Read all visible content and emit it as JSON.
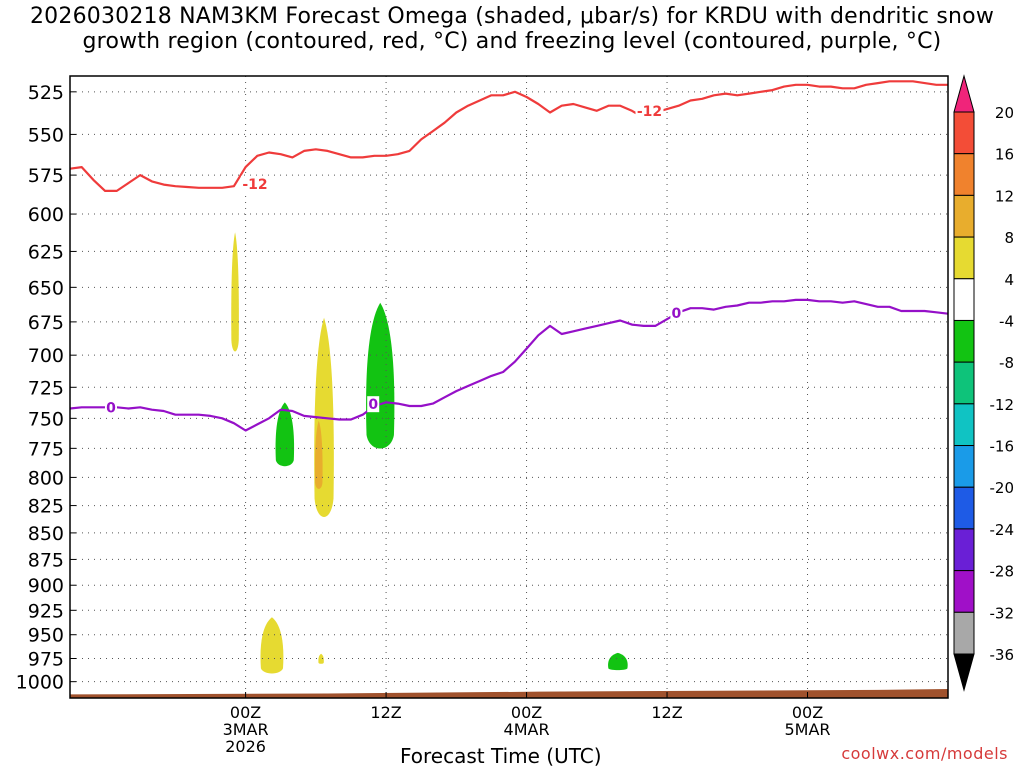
{
  "title_line1": "2026030218 NAM3KM Forecast Omega (shaded, μbar/s) for KRDU with dendritic snow",
  "title_line2": "growth region (contoured, red, °C) and freezing level (contoured, purple, °C)",
  "credit": "coolwx.com/models",
  "chart_data": {
    "type": "time-height",
    "xlabel": "Forecast Time (UTC)",
    "ylabel": "",
    "y_axis": {
      "unit": "hPa",
      "inverted": true,
      "ylim": [
        1018,
        516
      ],
      "ticks": [
        525,
        550,
        575,
        600,
        625,
        650,
        675,
        700,
        725,
        750,
        775,
        800,
        825,
        850,
        875,
        900,
        925,
        950,
        975,
        1000
      ]
    },
    "x_axis": {
      "start_hour": -15,
      "end_hour": 60,
      "ticks": [
        {
          "hour": 0,
          "lines": [
            "00Z",
            "3MAR",
            "2026"
          ]
        },
        {
          "hour": 12,
          "lines": [
            "12Z"
          ]
        },
        {
          "hour": 24,
          "lines": [
            "00Z",
            "4MAR"
          ]
        },
        {
          "hour": 36,
          "lines": [
            "12Z"
          ]
        },
        {
          "hour": 48,
          "lines": [
            "00Z",
            "5MAR"
          ]
        }
      ]
    },
    "grid": true,
    "colorbar": {
      "labels": [
        20,
        16,
        12,
        8,
        4,
        -4,
        -8,
        -12,
        -16,
        -20,
        -24,
        -28,
        -32,
        -36
      ],
      "colors": [
        "#f0247a",
        "#f34d37",
        "#f0822d",
        "#e8ad2d",
        "#e6da31",
        "#ffffff",
        "#12c312",
        "#0ec37a",
        "#10c3c3",
        "#1a9be8",
        "#1e5be6",
        "#6a1fd6",
        "#a010c8",
        "#a8a8a8",
        "#000000"
      ]
    },
    "series": [
      {
        "name": "-12",
        "color": "#ef3b3b",
        "label_positions": [
          [
            0.8,
            580.5
          ],
          [
            34.5,
            536.2
          ]
        ],
        "points": [
          [
            -15,
            571
          ],
          [
            -14,
            570
          ],
          [
            -13,
            578
          ],
          [
            -12,
            585
          ],
          [
            -11,
            585
          ],
          [
            -10,
            580
          ],
          [
            -9,
            575
          ],
          [
            -8,
            579
          ],
          [
            -7,
            581
          ],
          [
            -6,
            582
          ],
          [
            -5,
            582.5
          ],
          [
            -4,
            583
          ],
          [
            -3,
            583
          ],
          [
            -2,
            583
          ],
          [
            -1,
            582
          ],
          [
            0,
            570
          ],
          [
            1,
            563
          ],
          [
            2,
            561
          ],
          [
            3,
            562
          ],
          [
            4,
            564
          ],
          [
            5,
            560
          ],
          [
            6,
            559
          ],
          [
            7,
            560
          ],
          [
            8,
            562
          ],
          [
            9,
            564
          ],
          [
            10,
            564
          ],
          [
            11,
            563
          ],
          [
            12,
            563
          ],
          [
            13,
            562
          ],
          [
            14,
            560
          ],
          [
            15,
            553
          ],
          [
            16,
            548
          ],
          [
            17,
            543
          ],
          [
            18,
            537
          ],
          [
            19,
            533
          ],
          [
            20,
            530
          ],
          [
            21,
            527
          ],
          [
            22,
            527
          ],
          [
            23,
            525
          ],
          [
            24,
            528
          ],
          [
            25,
            532
          ],
          [
            26,
            537
          ],
          [
            27,
            533
          ],
          [
            28,
            532
          ],
          [
            29,
            534
          ],
          [
            30,
            536
          ],
          [
            31,
            533
          ],
          [
            32,
            533
          ],
          [
            33,
            536
          ],
          [
            34,
            540
          ],
          [
            35,
            537
          ],
          [
            36,
            535
          ],
          [
            37,
            533
          ],
          [
            38,
            530
          ],
          [
            39,
            529
          ],
          [
            40,
            527
          ],
          [
            41,
            526
          ],
          [
            42,
            527
          ],
          [
            43,
            526
          ],
          [
            44,
            525
          ],
          [
            45,
            524
          ],
          [
            46,
            522
          ],
          [
            47,
            521
          ],
          [
            48,
            521
          ],
          [
            49,
            522
          ],
          [
            50,
            522
          ],
          [
            51,
            523
          ],
          [
            52,
            523
          ],
          [
            53,
            521
          ],
          [
            54,
            520
          ],
          [
            55,
            519
          ],
          [
            56,
            519
          ],
          [
            57,
            519
          ],
          [
            58,
            520
          ],
          [
            59,
            521
          ],
          [
            60,
            521
          ]
        ]
      },
      {
        "name": "0",
        "color": "#9510c8",
        "label_positions": [
          [
            -11.5,
            741
          ],
          [
            36.8,
            668.5
          ],
          [
            10.9,
            738.5
          ]
        ],
        "points": [
          [
            -15,
            742
          ],
          [
            -14,
            741
          ],
          [
            -13,
            741
          ],
          [
            -12,
            741
          ],
          [
            -11,
            741
          ],
          [
            -10,
            742
          ],
          [
            -9,
            741
          ],
          [
            -8,
            743
          ],
          [
            -7,
            744
          ],
          [
            -6,
            747
          ],
          [
            -5,
            747
          ],
          [
            -4,
            747
          ],
          [
            -3,
            748
          ],
          [
            -2,
            750
          ],
          [
            -1,
            754
          ],
          [
            0,
            760
          ],
          [
            1,
            755
          ],
          [
            2,
            750
          ],
          [
            3,
            743
          ],
          [
            4,
            744
          ],
          [
            5,
            748
          ],
          [
            6,
            749
          ],
          [
            7,
            750
          ],
          [
            8,
            751
          ],
          [
            9,
            751
          ],
          [
            10,
            747
          ],
          [
            11,
            740
          ],
          [
            12,
            737
          ],
          [
            13,
            738
          ],
          [
            14,
            740
          ],
          [
            15,
            740
          ],
          [
            16,
            738
          ],
          [
            17,
            733
          ],
          [
            18,
            728
          ],
          [
            19,
            724
          ],
          [
            20,
            720
          ],
          [
            21,
            716
          ],
          [
            22,
            713
          ],
          [
            23,
            705
          ],
          [
            24,
            695
          ],
          [
            25,
            685
          ],
          [
            26,
            678
          ],
          [
            27,
            684
          ],
          [
            28,
            682
          ],
          [
            29,
            680
          ],
          [
            30,
            678
          ],
          [
            31,
            676
          ],
          [
            32,
            674
          ],
          [
            33,
            677
          ],
          [
            34,
            678
          ],
          [
            35,
            678
          ],
          [
            36,
            673
          ],
          [
            37,
            668
          ],
          [
            38,
            665
          ],
          [
            39,
            665
          ],
          [
            40,
            666
          ],
          [
            41,
            664
          ],
          [
            42,
            663
          ],
          [
            43,
            661
          ],
          [
            44,
            661
          ],
          [
            45,
            660
          ],
          [
            46,
            660
          ],
          [
            47,
            659
          ],
          [
            48,
            659
          ],
          [
            49,
            660
          ],
          [
            50,
            660
          ],
          [
            51,
            661
          ],
          [
            52,
            660
          ],
          [
            53,
            662
          ],
          [
            54,
            664
          ],
          [
            55,
            664
          ],
          [
            56,
            667
          ],
          [
            57,
            667
          ],
          [
            58,
            667
          ],
          [
            59,
            668
          ],
          [
            60,
            669
          ]
        ]
      }
    ],
    "shaded_regions": [
      {
        "name": "4 to 8",
        "color": "#e6da31",
        "top": 612,
        "bottom": 700,
        "hours": [
          -1.25,
          -0.55
        ]
      },
      {
        "name": "-4 to -8",
        "color": "#12c312",
        "top": 737,
        "bottom": 792,
        "hours": [
          2.5,
          4.2
        ]
      },
      {
        "name": "4 to 8",
        "color": "#e6da31",
        "top": 672,
        "bottom": 841,
        "hours": [
          5.8,
          7.6
        ]
      },
      {
        "name": "8 to 12",
        "color": "#e8ad2d",
        "top": 752,
        "bottom": 812,
        "hours": [
          5.9,
          6.6
        ]
      },
      {
        "name": "-4 to -8",
        "color": "#12c312",
        "top": 661,
        "bottom": 779,
        "hours": [
          10.2,
          12.8
        ]
      },
      {
        "name": "4 to 8",
        "color": "#e6da31",
        "top": 932,
        "bottom": 993,
        "hours": [
          1.2,
          3.3
        ]
      },
      {
        "name": "4 to 8",
        "color": "#e6da31",
        "top": 970,
        "bottom": 981,
        "hours": [
          6.2,
          6.7
        ]
      },
      {
        "name": "-4 to -8",
        "color": "#12c312",
        "top": 969,
        "bottom": 988,
        "hours": [
          30.9,
          32.7
        ]
      }
    ],
    "terrain": {
      "color": "#a0522d",
      "surface_hpa": [
        [
          -15,
          1014
        ],
        [
          7,
          1013
        ],
        [
          25,
          1011
        ],
        [
          40,
          1010
        ],
        [
          54,
          1009
        ],
        [
          60,
          1008
        ]
      ]
    }
  }
}
